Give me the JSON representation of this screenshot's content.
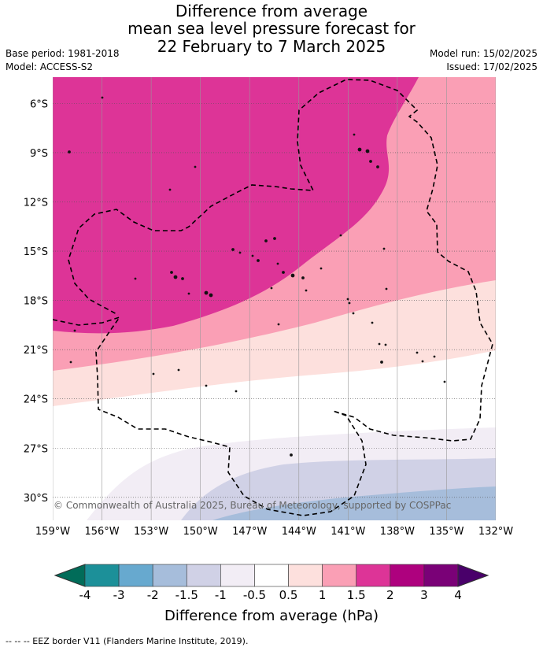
{
  "title": {
    "line1": "Difference from average",
    "line2": "mean sea level pressure forecast for",
    "line3": "22 February to 7 March 2025"
  },
  "meta": {
    "base_period": "Base period: 1981-2018",
    "model": "Model: ACCESS-S2",
    "model_run": "Model run: 15/02/2025",
    "issued": "Issued: 17/02/2025"
  },
  "map": {
    "copyright": "© Commonwealth of Australia 2025, Bureau of Meteorology, supported by COSPPac",
    "lat_labels": [
      "6°S",
      "9°S",
      "12°S",
      "15°S",
      "18°S",
      "21°S",
      "24°S",
      "27°S",
      "30°S"
    ],
    "lon_labels": [
      "159°W",
      "156°W",
      "153°W",
      "150°W",
      "147°W",
      "144°W",
      "141°W",
      "138°W",
      "135°W",
      "132°W"
    ],
    "lat_values": [
      -6,
      -9,
      -12,
      -15,
      -18,
      -21,
      -24,
      -27,
      -30
    ],
    "lon_values": [
      -159,
      -156,
      -153,
      -150,
      -147,
      -144,
      -141,
      -138,
      -135,
      -132
    ],
    "bands": [
      {
        "range": "1.5 to 2",
        "color": "#dd3497"
      },
      {
        "range": "1 to 1.5",
        "color": "#fa9fb5"
      },
      {
        "range": "0.5 to 1",
        "color": "#fde0dd"
      },
      {
        "range": "-0.5 to 0.5",
        "color": "#ffffff"
      },
      {
        "range": "-1 to -0.5",
        "color": "#f2edf5"
      },
      {
        "range": "-1.5 to -1",
        "color": "#d0d1e6"
      },
      {
        "range": "-2 to -1.5",
        "color": "#a6bddb"
      }
    ]
  },
  "colorbar": {
    "title": "Difference from average (hPa)",
    "labels": [
      "-4",
      "-3",
      "-2",
      "-1.5",
      "-1",
      "-0.5",
      "0.5",
      "1",
      "1.5",
      "2",
      "3",
      "4"
    ],
    "colors": [
      "#1c9099",
      "#67a9cf",
      "#a6bddb",
      "#d0d1e6",
      "#f2edf5",
      "#ffffff",
      "#fde0dd",
      "#fa9fb5",
      "#dd3497",
      "#ae017e",
      "#7a0177"
    ],
    "under_color": "#016c59",
    "over_color": "#49006a"
  },
  "footer": "--  --  -- EEZ border V11 (Flanders Marine Institute, 2019)."
}
